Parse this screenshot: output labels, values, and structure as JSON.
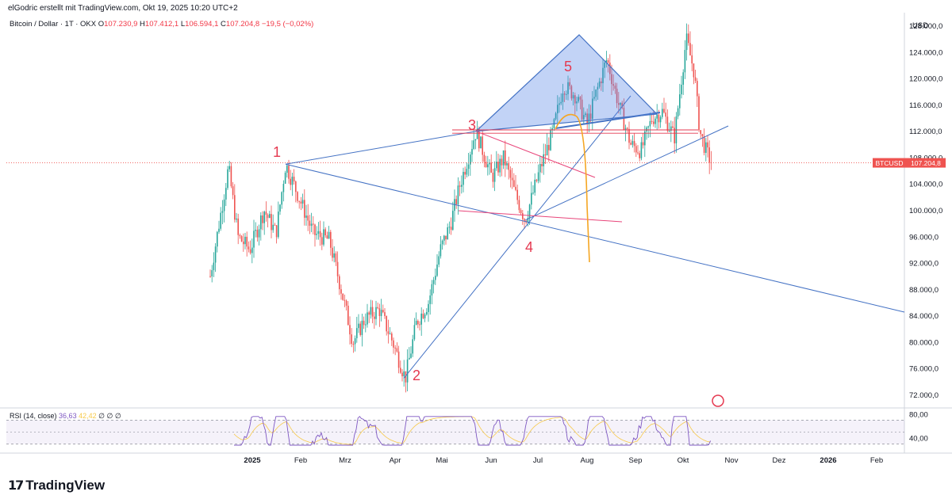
{
  "header": {
    "credit": "elGodric erstellt mit TradingView.com, Okt 19, 2025 10:20 UTC+2"
  },
  "symbol": {
    "name": "Bitcoin / Dollar · 1T · OKX",
    "open_label": "O",
    "open": "107.230,9",
    "high_label": "H",
    "high": "107.412,1",
    "low_label": "L",
    "low": "106.594,1",
    "close_label": "C",
    "close": "107.204,8",
    "change": "−19,5 (−0,02%)"
  },
  "currency": "USD",
  "price_tag": {
    "ticker": "BTCUSD",
    "value": "107.204,8"
  },
  "rsi": {
    "label": "RSI (14, close)",
    "value": "36,63",
    "ma_value": "42,42",
    "extra": "∅ ∅ ∅"
  },
  "footer": {
    "brand": "TradingView"
  },
  "colors": {
    "up": "#26a69a",
    "down": "#ef5350",
    "trend": "#4472c4",
    "wave_label": "#e53950",
    "orange": "#f5a623",
    "pink": "#e8457a",
    "rsi": "#7e57c2"
  },
  "chart_data": {
    "type": "candlestick",
    "y_axis": {
      "min": 70000,
      "max": 130000,
      "ticks": [
        72000,
        76000,
        80000,
        84000,
        88000,
        92000,
        96000,
        100000,
        104000,
        108000,
        112000,
        116000,
        120000,
        124000,
        128000
      ],
      "tick_labels": [
        "72.000,0",
        "76.000,0",
        "80.000,0",
        "84.000,0",
        "88.000,0",
        "92.000,0",
        "96.000,0",
        "100.000,0",
        "104.000,0",
        "108.000,0",
        "112.000,0",
        "116.000,0",
        "120.000,0",
        "124.000,0",
        "128.000,0"
      ]
    },
    "x_axis": {
      "labels": [
        "2025",
        "Feb",
        "Mrz",
        "Apr",
        "Mai",
        "Jun",
        "Jul",
        "Aug",
        "Sep",
        "Okt",
        "Nov",
        "Dez",
        "2026",
        "Feb"
      ]
    },
    "rsi_axis": {
      "ticks": [
        40,
        80
      ],
      "tick_labels": [
        "40,00",
        "80,00"
      ]
    },
    "wave_labels": [
      "1",
      "2",
      "3",
      "4",
      "5"
    ],
    "anchor_prices": [
      {
        "label": "start",
        "price": 90000
      },
      {
        "label": "1",
        "price": 107000
      },
      {
        "label": "2",
        "price": 74500
      },
      {
        "label": "3",
        "price": 112000
      },
      {
        "label": "4",
        "price": 98500
      },
      {
        "label": "5",
        "price": 123000
      },
      {
        "label": "peak",
        "price": 126000
      },
      {
        "label": "last",
        "price": 107204.8
      }
    ]
  }
}
